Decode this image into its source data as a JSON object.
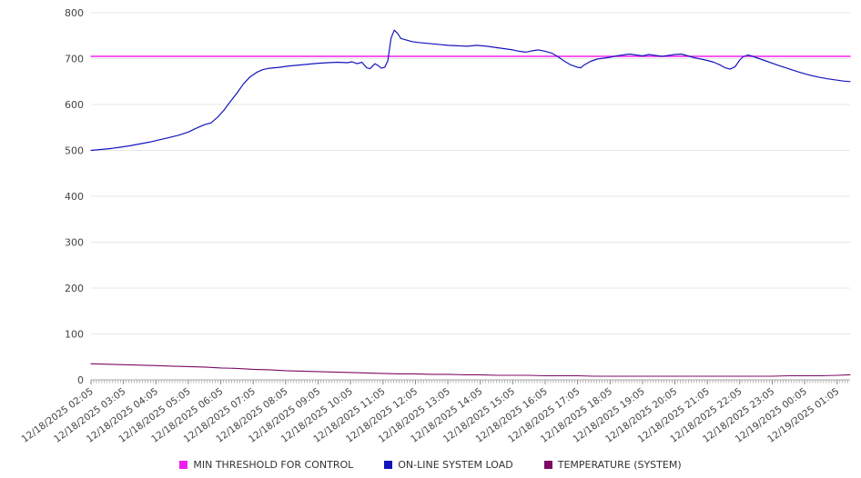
{
  "chart_data": {
    "type": "line",
    "title": "",
    "xlabel": "",
    "ylabel": "",
    "grid": true,
    "legend_position": "bottom",
    "ylim": [
      0,
      800
    ],
    "xlim": [
      0,
      23.4
    ],
    "yticks": [
      0,
      100,
      200,
      300,
      400,
      500,
      600,
      700,
      800
    ],
    "x_labels": [
      "12/18/2025 02:05",
      "12/18/2025 03:05",
      "12/18/2025 04:05",
      "12/18/2025 05:05",
      "12/18/2025 06:05",
      "12/18/2025 07:05",
      "12/18/2025 08:05",
      "12/18/2025 09:05",
      "12/18/2025 10:05",
      "12/18/2025 11:05",
      "12/18/2025 12:05",
      "12/18/2025 13:05",
      "12/18/2025 14:05",
      "12/18/2025 15:05",
      "12/18/2025 16:05",
      "12/18/2025 17:05",
      "12/18/2025 18:05",
      "12/18/2025 19:05",
      "12/18/2025 20:05",
      "12/18/2025 21:05",
      "12/18/2025 22:05",
      "12/18/2025 23:05",
      "12/19/2025 00:05",
      "12/19/2025 01:05"
    ],
    "series": [
      {
        "name": "MIN THRESHOLD FOR CONTROL",
        "color": "#f01ef0",
        "width": 1.4,
        "points": [
          [
            0,
            705
          ],
          [
            23.4,
            705
          ]
        ]
      },
      {
        "name": "ON-LINE SYSTEM LOAD",
        "color": "#1414bd",
        "width": 1.2,
        "points": [
          [
            0,
            500
          ],
          [
            0.3,
            502
          ],
          [
            0.6,
            504
          ],
          [
            0.9,
            507
          ],
          [
            1.2,
            510
          ],
          [
            1.5,
            514
          ],
          [
            1.8,
            518
          ],
          [
            2.1,
            523
          ],
          [
            2.4,
            528
          ],
          [
            2.7,
            533
          ],
          [
            3,
            540
          ],
          [
            3.2,
            547
          ],
          [
            3.4,
            553
          ],
          [
            3.5,
            556
          ],
          [
            3.7,
            560
          ],
          [
            3.9,
            572
          ],
          [
            4.1,
            588
          ],
          [
            4.3,
            607
          ],
          [
            4.5,
            625
          ],
          [
            4.7,
            645
          ],
          [
            4.9,
            660
          ],
          [
            5.1,
            670
          ],
          [
            5.3,
            676
          ],
          [
            5.5,
            679
          ],
          [
            5.8,
            681
          ],
          [
            6.1,
            684
          ],
          [
            6.4,
            686
          ],
          [
            6.7,
            688
          ],
          [
            7,
            690
          ],
          [
            7.3,
            691
          ],
          [
            7.6,
            692
          ],
          [
            7.9,
            691
          ],
          [
            8.05,
            693
          ],
          [
            8.2,
            689
          ],
          [
            8.35,
            692
          ],
          [
            8.5,
            680
          ],
          [
            8.6,
            678
          ],
          [
            8.75,
            689
          ],
          [
            8.85,
            685
          ],
          [
            8.95,
            679
          ],
          [
            9.05,
            681
          ],
          [
            9.15,
            695
          ],
          [
            9.25,
            745
          ],
          [
            9.35,
            762
          ],
          [
            9.45,
            755
          ],
          [
            9.55,
            744
          ],
          [
            9.7,
            741
          ],
          [
            9.9,
            737
          ],
          [
            10.1,
            735
          ],
          [
            10.4,
            733
          ],
          [
            10.7,
            731
          ],
          [
            11,
            729
          ],
          [
            11.3,
            728
          ],
          [
            11.6,
            727
          ],
          [
            11.9,
            729
          ],
          [
            12.2,
            727
          ],
          [
            12.5,
            724
          ],
          [
            12.8,
            721
          ],
          [
            13,
            719
          ],
          [
            13.2,
            716
          ],
          [
            13.4,
            714
          ],
          [
            13.6,
            717
          ],
          [
            13.8,
            719
          ],
          [
            14,
            716
          ],
          [
            14.2,
            712
          ],
          [
            14.4,
            704
          ],
          [
            14.6,
            694
          ],
          [
            14.8,
            686
          ],
          [
            15,
            681
          ],
          [
            15.1,
            680
          ],
          [
            15.2,
            686
          ],
          [
            15.4,
            694
          ],
          [
            15.6,
            699
          ],
          [
            15.8,
            701
          ],
          [
            16,
            703
          ],
          [
            16.2,
            706
          ],
          [
            16.4,
            708
          ],
          [
            16.6,
            710
          ],
          [
            16.8,
            708
          ],
          [
            17,
            706
          ],
          [
            17.2,
            709
          ],
          [
            17.4,
            707
          ],
          [
            17.6,
            705
          ],
          [
            17.8,
            707
          ],
          [
            18,
            709
          ],
          [
            18.2,
            710
          ],
          [
            18.4,
            706
          ],
          [
            18.6,
            702
          ],
          [
            18.8,
            699
          ],
          [
            19,
            696
          ],
          [
            19.2,
            692
          ],
          [
            19.4,
            686
          ],
          [
            19.55,
            680
          ],
          [
            19.7,
            677
          ],
          [
            19.85,
            682
          ],
          [
            20,
            697
          ],
          [
            20.1,
            704
          ],
          [
            20.25,
            708
          ],
          [
            20.4,
            705
          ],
          [
            20.6,
            700
          ],
          [
            20.8,
            695
          ],
          [
            21,
            690
          ],
          [
            21.2,
            685
          ],
          [
            21.5,
            678
          ],
          [
            21.8,
            671
          ],
          [
            22.1,
            665
          ],
          [
            22.4,
            660
          ],
          [
            22.7,
            656
          ],
          [
            23,
            653
          ],
          [
            23.2,
            651
          ],
          [
            23.4,
            650
          ]
        ]
      },
      {
        "name": "TEMPERATURE (SYSTEM)",
        "color": "#7d0a64",
        "width": 1.1,
        "points": [
          [
            0,
            35
          ],
          [
            0.5,
            34
          ],
          [
            1,
            33
          ],
          [
            1.5,
            32
          ],
          [
            2,
            31
          ],
          [
            2.5,
            30
          ],
          [
            3,
            29
          ],
          [
            3.5,
            28
          ],
          [
            4,
            26
          ],
          [
            4.5,
            25
          ],
          [
            5,
            23
          ],
          [
            5.5,
            22
          ],
          [
            6,
            20
          ],
          [
            6.5,
            19
          ],
          [
            7,
            18
          ],
          [
            7.5,
            17
          ],
          [
            8,
            16
          ],
          [
            8.5,
            15
          ],
          [
            9,
            14
          ],
          [
            9.5,
            13
          ],
          [
            10,
            13
          ],
          [
            10.5,
            12
          ],
          [
            11,
            12
          ],
          [
            11.5,
            11
          ],
          [
            12,
            11
          ],
          [
            12.5,
            10
          ],
          [
            13,
            10
          ],
          [
            13.5,
            10
          ],
          [
            14,
            9
          ],
          [
            14.5,
            9
          ],
          [
            15,
            9
          ],
          [
            15.5,
            8
          ],
          [
            16,
            8
          ],
          [
            16.5,
            8
          ],
          [
            17,
            8
          ],
          [
            17.5,
            8
          ],
          [
            18,
            8
          ],
          [
            18.5,
            8
          ],
          [
            19,
            8
          ],
          [
            19.5,
            8
          ],
          [
            20,
            8
          ],
          [
            20.5,
            8
          ],
          [
            21,
            8
          ],
          [
            21.5,
            9
          ],
          [
            22,
            9
          ],
          [
            22.5,
            9
          ],
          [
            23,
            10
          ],
          [
            23.4,
            11
          ]
        ]
      }
    ]
  },
  "legend": {
    "items": [
      {
        "label": "MIN THRESHOLD FOR CONTROL"
      },
      {
        "label": "ON-LINE SYSTEM LOAD"
      },
      {
        "label": "TEMPERATURE (SYSTEM)"
      }
    ]
  }
}
